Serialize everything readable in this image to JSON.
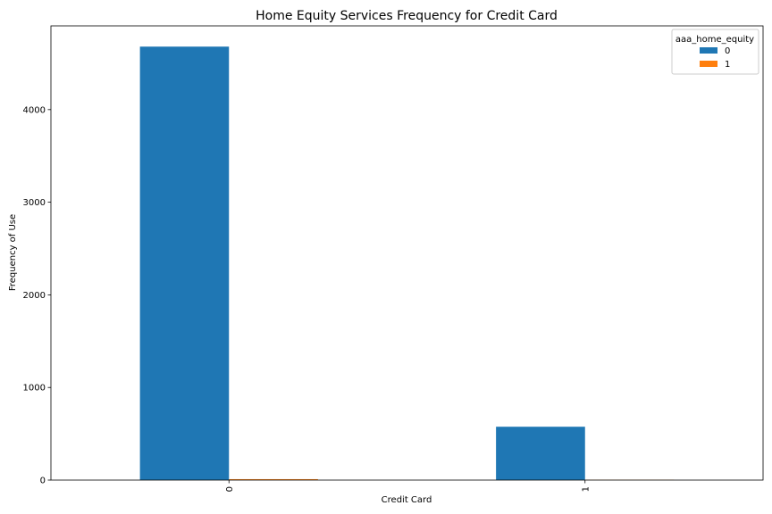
{
  "chart_data": {
    "type": "bar",
    "title": "Home Equity Services Frequency for Credit Card",
    "xlabel": "Credit Card",
    "ylabel": "Frequency of Use",
    "categories": [
      "0",
      "1"
    ],
    "series": [
      {
        "name": "0",
        "values": [
          4680,
          576
        ],
        "color": "#1f77b4"
      },
      {
        "name": "1",
        "values": [
          10,
          3
        ],
        "color": "#ff7f0e"
      }
    ],
    "ylim": [
      0,
      4904
    ],
    "yticks": [
      0,
      1000,
      2000,
      3000,
      4000
    ],
    "grid": false,
    "legend": {
      "title": "aaa_home_equity",
      "placement": "top-right"
    }
  }
}
